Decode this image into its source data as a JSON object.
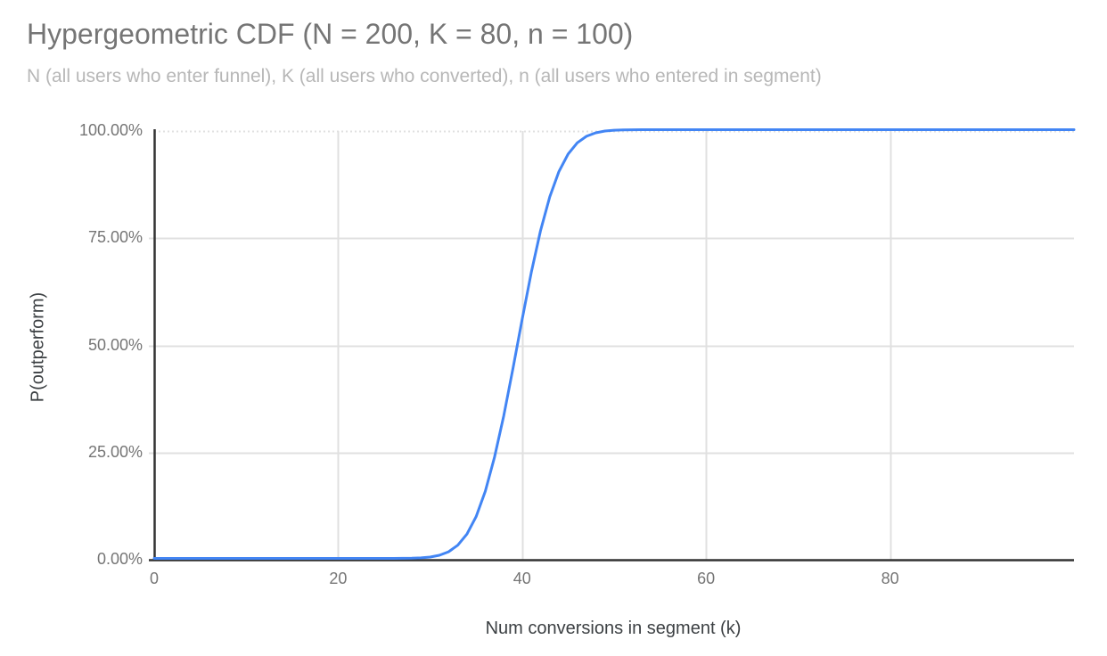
{
  "chart_data": {
    "type": "line",
    "title": "Hypergeometric CDF (N = 200, K = 80, n = 100)",
    "subtitle": "N (all users who enter funnel), K (all users who converted), n (all users who entered in segment)",
    "xlabel": "Num conversions in segment (k)",
    "ylabel": "P(outperform)",
    "xlim": [
      0,
      100
    ],
    "ylim": [
      0,
      1
    ],
    "grid": true,
    "legend_position": "none",
    "x_ticks": [
      {
        "value": 0,
        "label": "0"
      },
      {
        "value": 20,
        "label": "20"
      },
      {
        "value": 40,
        "label": "40"
      },
      {
        "value": 60,
        "label": "60"
      },
      {
        "value": 80,
        "label": "80"
      }
    ],
    "y_ticks": [
      {
        "value": 0.0,
        "label": "0.00%"
      },
      {
        "value": 0.25,
        "label": "25.00%"
      },
      {
        "value": 0.5,
        "label": "50.00%"
      },
      {
        "value": 0.75,
        "label": "75.00%"
      },
      {
        "value": 1.0,
        "label": "100.00%"
      }
    ],
    "series": [
      {
        "name": "P(outperform)",
        "color": "#4285f4",
        "points": [
          [
            0,
            0
          ],
          [
            5,
            0
          ],
          [
            10,
            0
          ],
          [
            15,
            0
          ],
          [
            20,
            0
          ],
          [
            24,
            0
          ],
          [
            25,
            0
          ],
          [
            26,
            0.0001
          ],
          [
            27,
            0.0002
          ],
          [
            28,
            0.0005
          ],
          [
            29,
            0.0013
          ],
          [
            30,
            0.0031
          ],
          [
            31,
            0.0072
          ],
          [
            32,
            0.0154
          ],
          [
            33,
            0.0307
          ],
          [
            34,
            0.0567
          ],
          [
            35,
            0.0976
          ],
          [
            36,
            0.1568
          ],
          [
            37,
            0.2359
          ],
          [
            38,
            0.3329
          ],
          [
            39,
            0.4428
          ],
          [
            40,
            0.5572
          ],
          [
            41,
            0.6671
          ],
          [
            42,
            0.7641
          ],
          [
            43,
            0.8432
          ],
          [
            44,
            0.9024
          ],
          [
            45,
            0.9433
          ],
          [
            46,
            0.9694
          ],
          [
            47,
            0.9846
          ],
          [
            48,
            0.9928
          ],
          [
            49,
            0.9969
          ],
          [
            50,
            0.9987
          ],
          [
            51,
            0.9995
          ],
          [
            52,
            0.9998
          ],
          [
            53,
            0.9999
          ],
          [
            54,
            1
          ],
          [
            56,
            1
          ],
          [
            58,
            1
          ],
          [
            60,
            1
          ],
          [
            65,
            1
          ],
          [
            70,
            1
          ],
          [
            75,
            1
          ],
          [
            80,
            1
          ],
          [
            85,
            1
          ],
          [
            90,
            1
          ],
          [
            95,
            1
          ],
          [
            100,
            1
          ]
        ]
      }
    ],
    "style": {
      "title_color": "#757575",
      "subtitle_color": "#b7b7b7",
      "tick_label_color": "#757575",
      "axis_title_color": "#3c4043",
      "gridline_color": "#e0e0e0",
      "axis_line_color": "#333333",
      "background_color": "#ffffff"
    }
  }
}
